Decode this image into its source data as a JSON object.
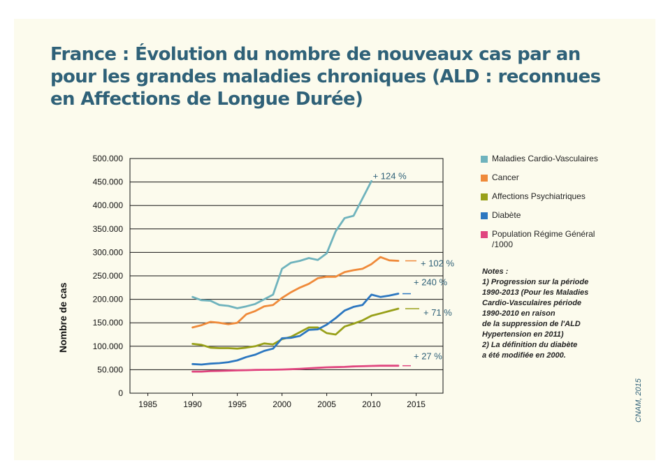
{
  "chart_data": {
    "type": "line",
    "title": "France : Évolution du nombre de nouveaux cas par an pour les grandes maladies chroniques (ALD : reconnues en Affections de Longue Durée)",
    "ylabel": "Nombre de cas",
    "xlabel": "",
    "xlim": [
      1983,
      2018
    ],
    "ylim": [
      0,
      500000
    ],
    "x_ticks": [
      1985,
      1990,
      1995,
      2000,
      2005,
      2010,
      2015
    ],
    "x_tick_labels": [
      "1985",
      "1990",
      "1995",
      "2000",
      "2005",
      "2010",
      "2015"
    ],
    "y_ticks": [
      0,
      50000,
      100000,
      150000,
      200000,
      250000,
      300000,
      350000,
      400000,
      450000,
      500000
    ],
    "y_tick_labels": [
      "0",
      "50.000",
      "100.000",
      "150.000",
      "200.000",
      "250.000",
      "300.000",
      "350.000",
      "400.000",
      "450.000",
      "500.000"
    ],
    "grid": "horizontal",
    "legend_position": "right",
    "series": [
      {
        "name": "Maladies Cardio-Vasculaires",
        "color": "#6fb3bd",
        "x": [
          1990,
          1991,
          1992,
          1993,
          1994,
          1995,
          1996,
          1997,
          1998,
          1999,
          2000,
          2001,
          2002,
          2003,
          2004,
          2005,
          2006,
          2007,
          2008,
          2009,
          2010
        ],
        "values": [
          205000,
          198000,
          197000,
          188000,
          186000,
          181000,
          185000,
          190000,
          200000,
          210000,
          265000,
          278000,
          282000,
          288000,
          284000,
          298000,
          345000,
          373000,
          378000,
          415000,
          452000
        ],
        "annotation": "+ 124 %"
      },
      {
        "name": "Cancer",
        "color": "#ef8a3a",
        "x": [
          1990,
          1991,
          1992,
          1993,
          1994,
          1995,
          1996,
          1997,
          1998,
          1999,
          2000,
          2001,
          2002,
          2003,
          2004,
          2005,
          2006,
          2007,
          2008,
          2009,
          2010,
          2011,
          2012,
          2013
        ],
        "values": [
          140000,
          145000,
          152000,
          150000,
          147000,
          150000,
          168000,
          175000,
          185000,
          188000,
          203000,
          215000,
          225000,
          233000,
          245000,
          248000,
          248000,
          258000,
          262000,
          265000,
          275000,
          290000,
          283000,
          282000
        ],
        "annotation": "+ 102 %"
      },
      {
        "name": "Affections Psychiatriques",
        "color": "#98a019",
        "x": [
          1990,
          1991,
          1992,
          1993,
          1994,
          1995,
          1996,
          1997,
          1998,
          1999,
          2000,
          2001,
          2002,
          2003,
          2004,
          2005,
          2006,
          2007,
          2008,
          2009,
          2010,
          2011,
          2012,
          2013
        ],
        "values": [
          105000,
          103000,
          97000,
          96000,
          96000,
          95000,
          97000,
          100000,
          106000,
          104000,
          115000,
          120000,
          130000,
          140000,
          140000,
          128000,
          125000,
          142000,
          148000,
          155000,
          165000,
          170000,
          175000,
          180000
        ],
        "annotation": "+ 71 %"
      },
      {
        "name": "Diabète",
        "color": "#2c77c0",
        "x": [
          1990,
          1991,
          1992,
          1993,
          1994,
          1995,
          1996,
          1997,
          1998,
          1999,
          2000,
          2001,
          2002,
          2003,
          2004,
          2005,
          2006,
          2007,
          2008,
          2009,
          2010,
          2011,
          2012,
          2013
        ],
        "values": [
          62000,
          61000,
          63000,
          64000,
          66000,
          70000,
          77000,
          82000,
          90000,
          95000,
          117000,
          118000,
          122000,
          135000,
          136000,
          146000,
          160000,
          176000,
          184000,
          188000,
          210000,
          205000,
          208000,
          212000
        ],
        "annotation": "+ 240 %"
      },
      {
        "name": "Population Régime Général /1000",
        "color": "#e0457f",
        "x": [
          1990,
          1991,
          1992,
          1993,
          1994,
          1995,
          1996,
          1997,
          1998,
          1999,
          2000,
          2001,
          2002,
          2003,
          2004,
          2005,
          2006,
          2007,
          2008,
          2009,
          2010,
          2011,
          2012,
          2013
        ],
        "values": [
          46000,
          46000,
          47000,
          47500,
          48000,
          48500,
          49000,
          49500,
          49800,
          50000,
          50500,
          51000,
          52000,
          53000,
          54000,
          55000,
          55500,
          56000,
          57000,
          57500,
          58000,
          58500,
          58500,
          58500
        ],
        "annotation": "+ 27 %"
      }
    ],
    "notes": {
      "title": "Notes :",
      "lines": [
        "1) Progression sur la période\n1990-2013 (Pour les Maladies\nCardio-Vasculaires période\n1990-2010 en raison\nde la suppression de l'ALD\nHypertension en 2011)",
        "2) La définition du diabète\na été modifiée en 2000."
      ]
    },
    "credit": "CNAM, 2015"
  },
  "legend": {
    "items": [
      {
        "label": "Maladies Cardio-Vasculaires",
        "color": "#6fb3bd"
      },
      {
        "label": "Cancer",
        "color": "#ef8a3a"
      },
      {
        "label": "Affections Psychiatriques",
        "color": "#98a019"
      },
      {
        "label": "Diabète",
        "color": "#2c77c0"
      },
      {
        "label": "Population Régime Général\n/1000",
        "color": "#e0457f"
      }
    ]
  }
}
